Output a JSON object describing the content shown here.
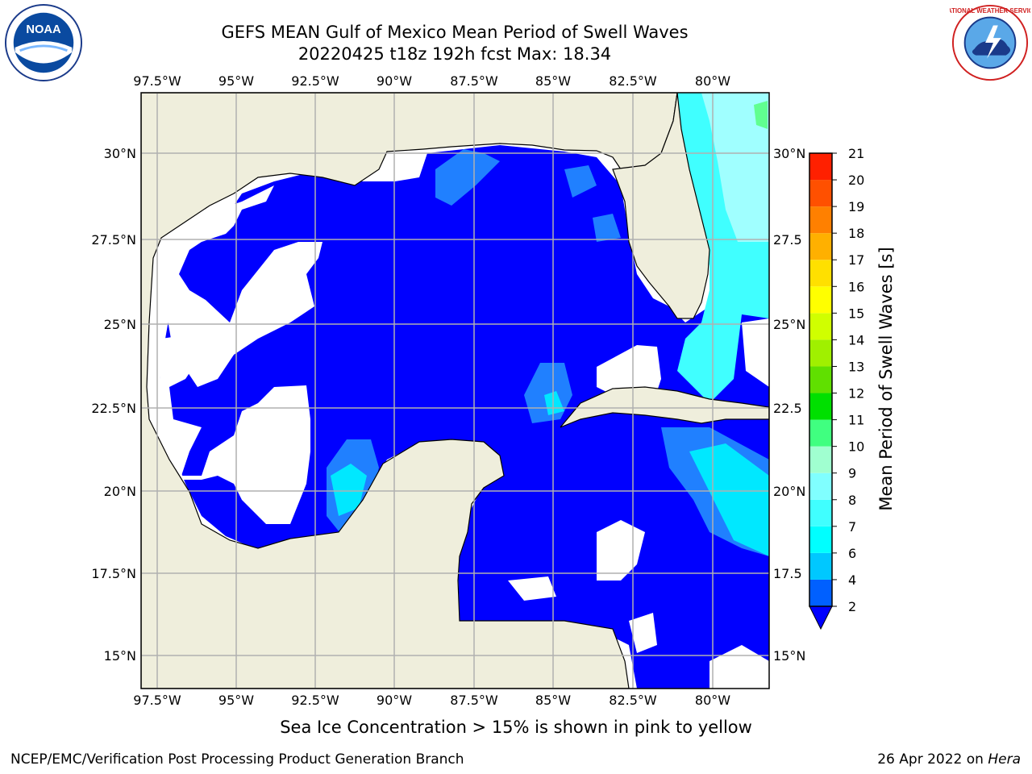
{
  "title_line1": "GEFS MEAN Gulf of Mexico Mean Period of Swell Waves",
  "title_line2": "20220425 t18z 192h fcst   Max: 18.34",
  "lon_ticks": [
    "97.5°W",
    "95°W",
    "92.5°W",
    "90°W",
    "87.5°W",
    "85°W",
    "82.5°W",
    "80°W"
  ],
  "lat_ticks_left": [
    "30°N",
    "27.5°N",
    "25°N",
    "22.5°N",
    "20°N",
    "17.5°N",
    "15°N"
  ],
  "lat_ticks_right": [
    "30°N",
    "27.5",
    "25°N",
    "22.5",
    "20°N",
    "17.5",
    "15°N"
  ],
  "colorbar": {
    "label": "Mean Period of Swell Waves [s]",
    "levels": [
      "2",
      "4",
      "6",
      "7",
      "8",
      "9",
      "10",
      "11",
      "12",
      "13",
      "14",
      "15",
      "16",
      "17",
      "18",
      "19",
      "20",
      "21"
    ],
    "colors": [
      "#0060ff",
      "#00c8ff",
      "#00ffff",
      "#40ffff",
      "#80ffff",
      "#a0ffd0",
      "#40ff80",
      "#00e000",
      "#60e000",
      "#a0f000",
      "#d0ff00",
      "#ffff00",
      "#ffe000",
      "#ffb000",
      "#ff8000",
      "#ff5000",
      "#ff2000",
      "#ff0000"
    ]
  },
  "footnote": "Sea Ice Concentration > 15% is shown in pink to yellow",
  "credit_left": "NCEP/EMC/Verification Post Processing Product Generation Branch",
  "credit_right_prefix": "26 Apr 2022 on ",
  "credit_right_machine": "Hera",
  "logos": {
    "left": "NOAA",
    "right": "NATIONAL WEATHER SERVICE"
  },
  "colors": {
    "land": "#efeedc",
    "ocean_base": "#0000ff",
    "no_data": "#ffffff",
    "grid": "#b0b0b0"
  }
}
